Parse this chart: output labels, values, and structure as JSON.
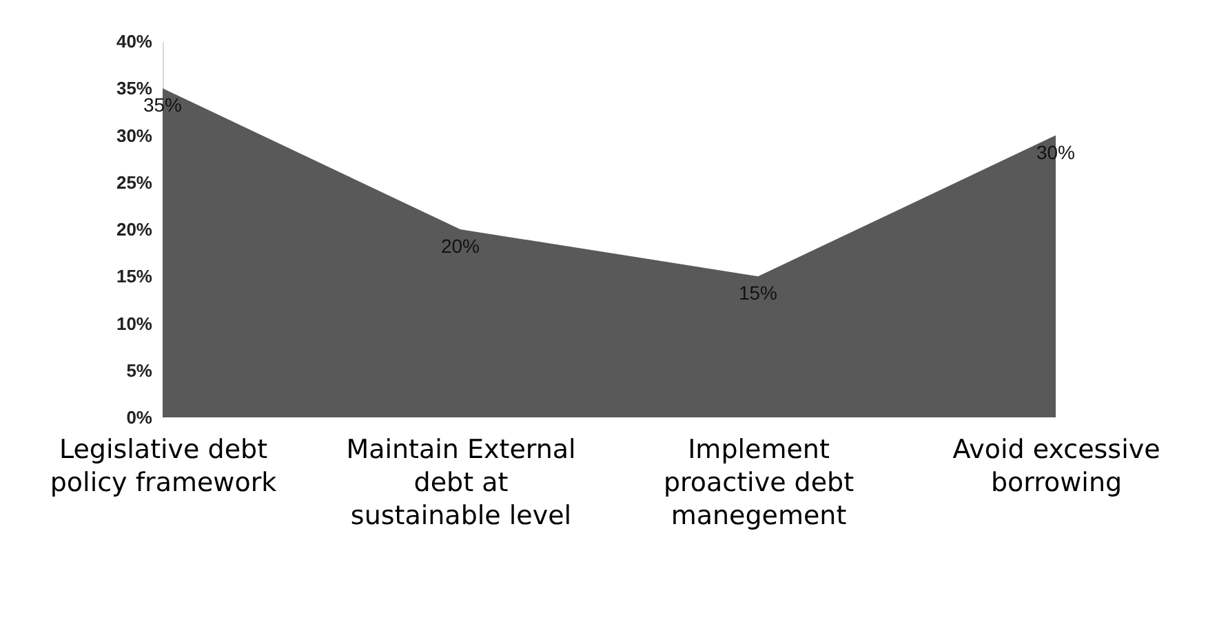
{
  "chart_data": {
    "type": "area",
    "categories": [
      "Legislative debt policy framework",
      "Maintain External debt at sustainable level",
      "Implement proactive debt manegement",
      "Avoid excessive borrowing"
    ],
    "values": [
      35,
      20,
      15,
      30
    ],
    "color": "#595959",
    "value_labels": [
      "35%",
      "20%",
      "15%",
      "30%"
    ],
    "ylim": [
      0,
      40
    ],
    "yticks": [
      {
        "value": 0,
        "label": "0%"
      },
      {
        "value": 5,
        "label": "5%"
      },
      {
        "value": 10,
        "label": "10%"
      },
      {
        "value": 15,
        "label": "15%"
      },
      {
        "value": 20,
        "label": "20%"
      },
      {
        "value": 25,
        "label": "25%"
      },
      {
        "value": 30,
        "label": "30%"
      },
      {
        "value": 35,
        "label": "35%"
      },
      {
        "value": 40,
        "label": "40%"
      }
    ],
    "grid": false
  }
}
